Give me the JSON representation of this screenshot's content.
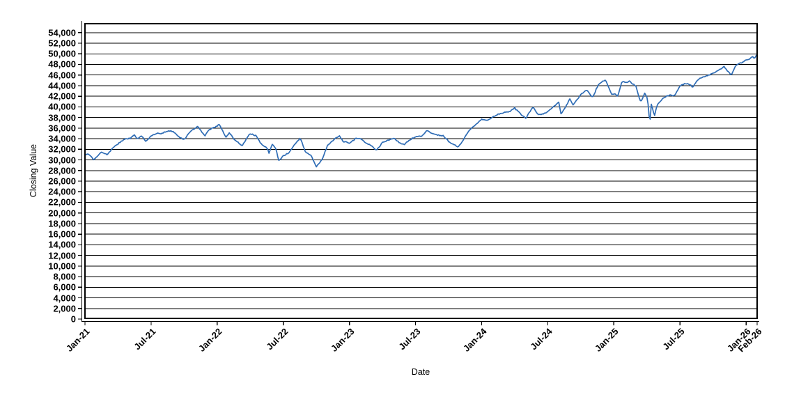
{
  "chart_data": {
    "type": "line",
    "title": "",
    "xlabel": "Date",
    "ylabel": "Closing Value",
    "legend": null,
    "grid": "horizontal-only",
    "line_color": "#2e6cb5",
    "grid_color": "#000000",
    "x_range_months": [
      0,
      61
    ],
    "ylim": [
      0,
      55700
    ],
    "y_ticks": [
      0,
      2000,
      4000,
      6000,
      8000,
      10000,
      12000,
      14000,
      16000,
      18000,
      20000,
      22000,
      24000,
      26000,
      28000,
      30000,
      32000,
      34000,
      36000,
      38000,
      40000,
      42000,
      44000,
      46000,
      48000,
      50000,
      52000,
      54000
    ],
    "x_ticks": [
      {
        "label": "Jan-21",
        "month": 0
      },
      {
        "label": "Jul-21",
        "month": 6
      },
      {
        "label": "Jan-22",
        "month": 12
      },
      {
        "label": "Jul-22",
        "month": 18
      },
      {
        "label": "Jan-23",
        "month": 24
      },
      {
        "label": "Jul-23",
        "month": 30
      },
      {
        "label": "Jan-24",
        "month": 36
      },
      {
        "label": "Jul-24",
        "month": 42
      },
      {
        "label": "Jan-25",
        "month": 48
      },
      {
        "label": "Jul-25",
        "month": 54
      },
      {
        "label": "Jan-26",
        "month": 60
      },
      {
        "label": "Feb-26",
        "month": 61
      }
    ],
    "series": [
      {
        "name": "Closing Value",
        "anchors_month_value": [
          [
            0,
            30900
          ],
          [
            0.35,
            31150
          ],
          [
            0.8,
            29990
          ],
          [
            1.5,
            31520
          ],
          [
            2,
            30980
          ],
          [
            2.6,
            32400
          ],
          [
            3,
            33070
          ],
          [
            3.6,
            33870
          ],
          [
            4.1,
            34080
          ],
          [
            4.5,
            34740
          ],
          [
            4.75,
            33900
          ],
          [
            5.1,
            34580
          ],
          [
            5.55,
            33450
          ],
          [
            6,
            34500
          ],
          [
            6.5,
            34940
          ],
          [
            7,
            35060
          ],
          [
            7.6,
            35500
          ],
          [
            8,
            35360
          ],
          [
            8.6,
            34250
          ],
          [
            9,
            33840
          ],
          [
            9.6,
            35450
          ],
          [
            10.25,
            36330
          ],
          [
            10.85,
            34520
          ],
          [
            11.3,
            35750
          ],
          [
            12,
            36340
          ],
          [
            12.15,
            36800
          ],
          [
            12.8,
            34270
          ],
          [
            13.1,
            35100
          ],
          [
            13.55,
            33880
          ],
          [
            14.25,
            32650
          ],
          [
            14.95,
            34950
          ],
          [
            15.5,
            34580
          ],
          [
            16,
            32980
          ],
          [
            16.55,
            32250
          ],
          [
            16.7,
            31260
          ],
          [
            17,
            32990
          ],
          [
            17.3,
            32200
          ],
          [
            17.6,
            29890
          ],
          [
            18,
            30780
          ],
          [
            18.5,
            31300
          ],
          [
            19,
            32840
          ],
          [
            19.55,
            34150
          ],
          [
            20,
            31510
          ],
          [
            20.5,
            30900
          ],
          [
            21,
            28730
          ],
          [
            21.2,
            29250
          ],
          [
            21.6,
            30450
          ],
          [
            22,
            32730
          ],
          [
            22.5,
            33600
          ],
          [
            23.05,
            34590
          ],
          [
            23.45,
            33450
          ],
          [
            24,
            33150
          ],
          [
            24.6,
            34050
          ],
          [
            25,
            34090
          ],
          [
            25.55,
            33100
          ],
          [
            26,
            32660
          ],
          [
            26.45,
            31820
          ],
          [
            27,
            33270
          ],
          [
            27.55,
            33750
          ],
          [
            28.05,
            34100
          ],
          [
            28.55,
            33200
          ],
          [
            29,
            32910
          ],
          [
            29.55,
            33900
          ],
          [
            30,
            34410
          ],
          [
            30.55,
            34450
          ],
          [
            31.05,
            35560
          ],
          [
            31.5,
            35000
          ],
          [
            32,
            34720
          ],
          [
            32.55,
            34550
          ],
          [
            33,
            33510
          ],
          [
            33.85,
            32420
          ],
          [
            34.2,
            33300
          ],
          [
            34.65,
            34900
          ],
          [
            35.05,
            35950
          ],
          [
            35.55,
            36800
          ],
          [
            36,
            37690
          ],
          [
            36.55,
            37470
          ],
          [
            37.05,
            38150
          ],
          [
            37.6,
            38650
          ],
          [
            38.05,
            38990
          ],
          [
            38.55,
            39080
          ],
          [
            39,
            39810
          ],
          [
            39.6,
            38460
          ],
          [
            40,
            37820
          ],
          [
            40.65,
            40000
          ],
          [
            41.05,
            38690
          ],
          [
            41.5,
            38600
          ],
          [
            42,
            39120
          ],
          [
            42.55,
            40100
          ],
          [
            43,
            40840
          ],
          [
            43.2,
            38700
          ],
          [
            43.6,
            39900
          ],
          [
            44,
            41560
          ],
          [
            44.3,
            40350
          ],
          [
            45,
            42330
          ],
          [
            45.55,
            43280
          ],
          [
            46.05,
            41760
          ],
          [
            46.6,
            44200
          ],
          [
            47.05,
            44910
          ],
          [
            47.25,
            45070
          ],
          [
            47.8,
            42330
          ],
          [
            48.05,
            42540
          ],
          [
            48.35,
            41940
          ],
          [
            48.75,
            44850
          ],
          [
            49.05,
            44545
          ],
          [
            49.4,
            44880
          ],
          [
            50,
            43840
          ],
          [
            50.45,
            40815
          ],
          [
            50.8,
            42580
          ],
          [
            51.05,
            41600
          ],
          [
            51.2,
            38310
          ],
          [
            51.3,
            37650
          ],
          [
            51.4,
            40600
          ],
          [
            51.55,
            39400
          ],
          [
            51.68,
            38170
          ],
          [
            51.85,
            39900
          ],
          [
            52.05,
            40670
          ],
          [
            52.55,
            41800
          ],
          [
            53.05,
            42270
          ],
          [
            53.5,
            42100
          ],
          [
            54.05,
            44095
          ],
          [
            54.55,
            44460
          ],
          [
            55,
            44130
          ],
          [
            55.15,
            43590
          ],
          [
            55.55,
            45000
          ],
          [
            56,
            45545
          ],
          [
            56.5,
            45900
          ],
          [
            57,
            46400
          ],
          [
            57.5,
            46900
          ],
          [
            58,
            47560
          ],
          [
            58.35,
            46700
          ],
          [
            58.65,
            45950
          ],
          [
            59.05,
            47720
          ],
          [
            59.3,
            48100
          ],
          [
            59.7,
            48400
          ],
          [
            60,
            48820
          ],
          [
            60.3,
            48950
          ],
          [
            60.55,
            49500
          ],
          [
            60.75,
            49150
          ],
          [
            61,
            49900
          ]
        ],
        "noise_amplitude": 130,
        "noise_seed": 7,
        "samples_per_month": 10
      }
    ]
  }
}
